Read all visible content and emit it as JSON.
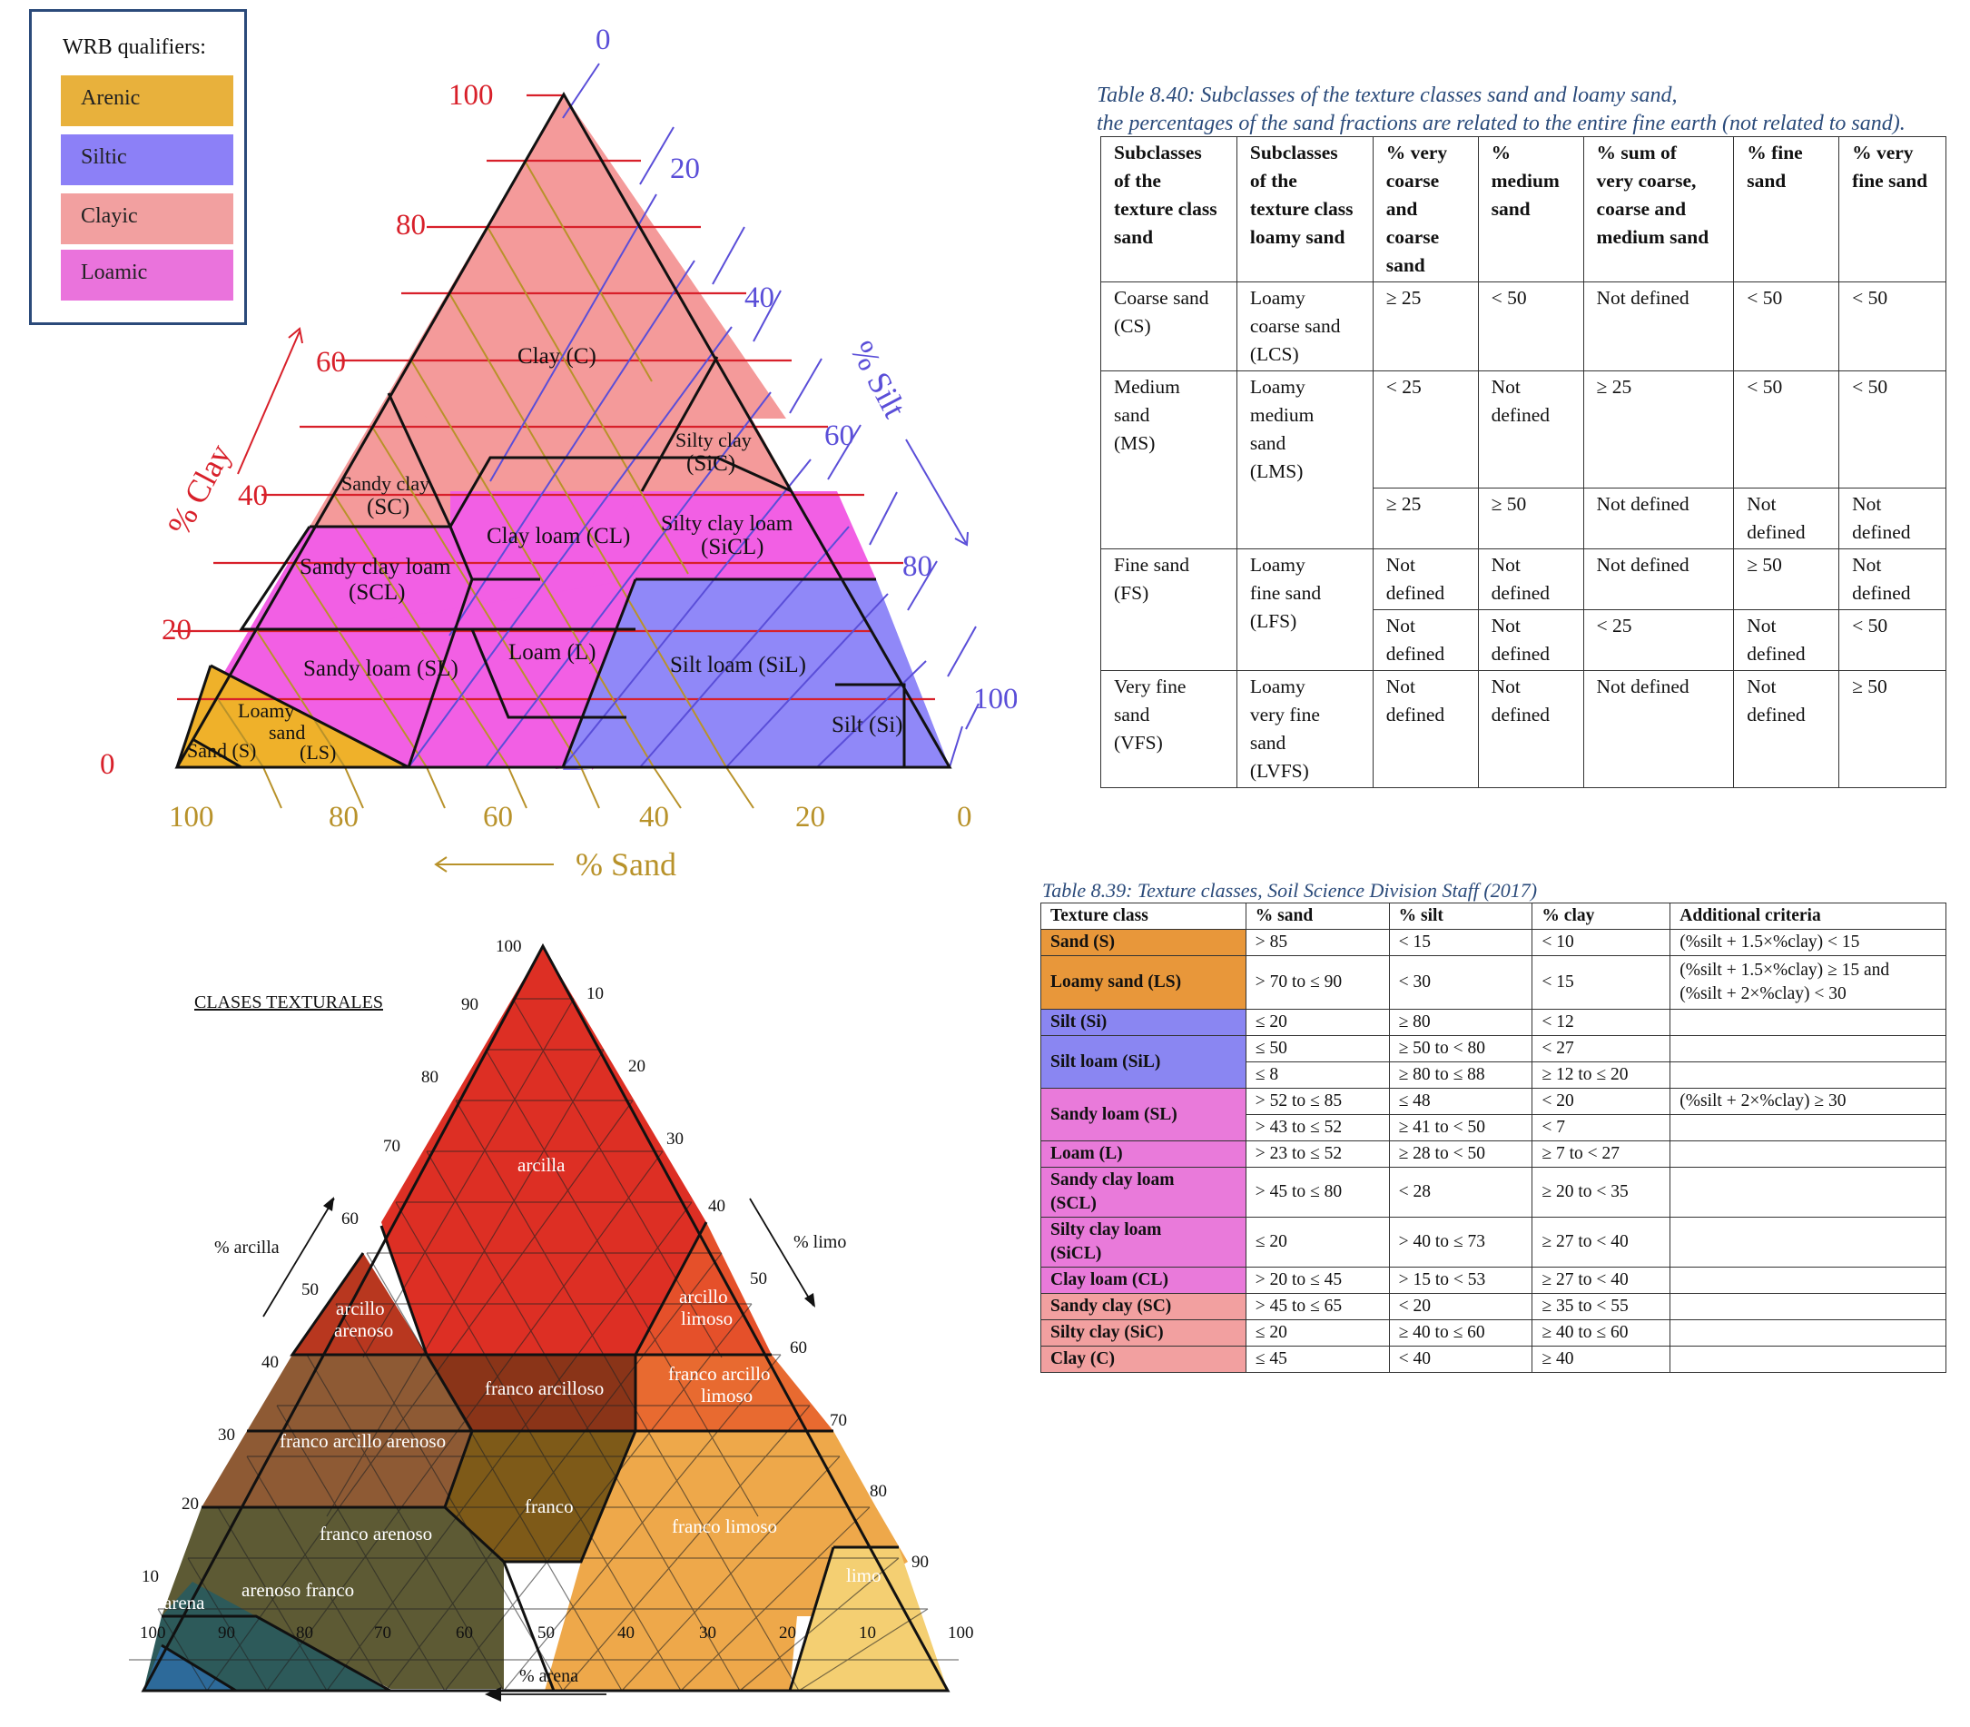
{
  "legend": {
    "title": "WRB qualifiers:",
    "items": [
      {
        "label": "Arenic",
        "color": "#e8b13c"
      },
      {
        "label": "Siltic",
        "color": "#8c80f7"
      },
      {
        "label": "Clayic",
        "color": "#f2a0a0"
      },
      {
        "label": "Loamic",
        "color": "#ea73dc"
      }
    ]
  },
  "triangle_en": {
    "axis_clay": "% Clay",
    "axis_silt": "% Silt",
    "axis_sand": "% Sand",
    "clay_ticks": [
      "100",
      "80",
      "60",
      "40",
      "20",
      "0"
    ],
    "silt_ticks": [
      "0",
      "20",
      "40",
      "60",
      "80",
      "100"
    ],
    "sand_ticks": [
      "100",
      "80",
      "60",
      "40",
      "20",
      "0"
    ],
    "classes": {
      "clay": "Clay (C)",
      "sandy_clay_1": "Sandy clay",
      "sandy_clay_2": "(SC)",
      "silty_clay_1": "Silty clay",
      "silty_clay_2": "(SiC)",
      "clay_loam": "Clay loam (CL)",
      "silty_clay_loam_1": "Silty clay loam",
      "silty_clay_loam_2": "(SiCL)",
      "sandy_clay_loam_1": "Sandy clay loam",
      "sandy_clay_loam_2": "(SCL)",
      "loam": "Loam (L)",
      "sandy_loam": "Sandy loam (SL)",
      "silt_loam": "Silt loam (SiL)",
      "silt": "Silt (Si)",
      "loamy_sand_1": "Loamy",
      "loamy_sand_2": "sand",
      "loamy_sand_3": "(LS)",
      "sand": "Sand (S)"
    },
    "colors": {
      "clayic": "#f49a9a",
      "loamic": "#f25fe4",
      "siltic": "#9088f8",
      "arenic": "#efb12a",
      "clay_axis": "#d8202a",
      "silt_axis": "#5a4ed8",
      "sand_axis": "#b8922a"
    }
  },
  "triangle_es": {
    "title": "CLASES TEXTURALES",
    "axis_clay": "% arcilla",
    "axis_silt": "% limo",
    "axis_sand": "% arena",
    "clay_ticks": [
      "100",
      "90",
      "80",
      "70",
      "60",
      "50",
      "40",
      "30",
      "20",
      "10"
    ],
    "silt_ticks": [
      "10",
      "20",
      "30",
      "40",
      "50",
      "60",
      "70",
      "80",
      "90",
      "100"
    ],
    "sand_ticks": [
      "100",
      "90",
      "80",
      "70",
      "60",
      "50",
      "40",
      "30",
      "20",
      "10"
    ],
    "classes": {
      "arcilla": "arcilla",
      "arcillo_arenoso_1": "arcillo",
      "arcillo_arenoso_2": "arenoso",
      "arcillo_limoso_1": "arcillo",
      "arcillo_limoso_2": "limoso",
      "franco_arcilloso": "franco arcilloso",
      "franco_arcillo_limoso_1": "franco arcillo",
      "franco_arcillo_limoso_2": "limoso",
      "franco_arcillo_arenoso": "franco arcillo arenoso",
      "franco": "franco",
      "franco_arenoso": "franco arenoso",
      "franco_limoso": "franco limoso",
      "arenoso_franco": "arenoso franco",
      "arena": "arena",
      "limo": "limo"
    },
    "colors": {
      "arcilla": "#dd2f24",
      "arcillo_arenoso": "#b8371f",
      "arcillo_limoso": "#e5502a",
      "franco_arcilloso": "#8a3418",
      "franco_arcillo_limoso": "#e86a30",
      "franco_arcillo_arenoso": "#8e5a34",
      "franco": "#7e5a18",
      "franco_arenoso": "#5d5a34",
      "franco_limoso": "#eea84a",
      "arenoso_franco": "#2d5a5a",
      "arena": "#2d6a9a",
      "limo": "#f4cf72"
    }
  },
  "table_840": {
    "caption_1": "Table 8.40: Subclasses of the texture classes sand and loamy sand,",
    "caption_2": "the percentages of the sand fractions are related to the entire fine earth (not related to sand).",
    "headers": [
      [
        "Subclasses",
        "of the",
        "texture class",
        "sand"
      ],
      [
        "Subclasses",
        "of the",
        "texture class",
        "loamy sand"
      ],
      [
        "% very",
        "coarse",
        "and",
        "coarse",
        "sand"
      ],
      [
        "%",
        "medium",
        "sand"
      ],
      [
        "% sum of",
        "very coarse,",
        "coarse and",
        "medium sand"
      ],
      [
        "% fine",
        "sand"
      ],
      [
        "% very",
        "fine sand"
      ]
    ],
    "rows": {
      "cs_sand": [
        "Coarse sand",
        "(CS)"
      ],
      "cs_loamy": [
        "Loamy",
        "coarse sand",
        "(LCS)"
      ],
      "cs_vals": [
        "≥ 25",
        "< 50",
        "Not defined",
        "< 50",
        "< 50"
      ],
      "ms_sand": [
        "Medium",
        "sand",
        "(MS)"
      ],
      "ms_loamy": [
        "Loamy",
        "medium",
        "sand",
        "(LMS)"
      ],
      "ms_vals_a": [
        "< 25",
        [
          "Not",
          "defined"
        ],
        "≥ 25",
        "< 50",
        "< 50"
      ],
      "ms_vals_b": [
        "≥ 25",
        "≥ 50",
        "Not defined",
        [
          "Not",
          "defined"
        ],
        [
          "Not",
          "defined"
        ]
      ],
      "fs_sand": [
        "Fine sand",
        "(FS)"
      ],
      "fs_loamy": [
        "Loamy",
        "fine sand",
        "(LFS)"
      ],
      "fs_vals_a": [
        [
          "Not",
          "defined"
        ],
        [
          "Not",
          "defined"
        ],
        "Not defined",
        "≥ 50",
        [
          "Not",
          "defined"
        ]
      ],
      "fs_vals_b": [
        [
          "Not",
          "defined"
        ],
        [
          "Not",
          "defined"
        ],
        "< 25",
        [
          "Not",
          "defined"
        ],
        "< 50"
      ],
      "vfs_sand": [
        "Very fine",
        "sand",
        "(VFS)"
      ],
      "vfs_loamy": [
        "Loamy",
        "very fine",
        "sand",
        "(LVFS)"
      ],
      "vfs_vals": [
        [
          "Not",
          "defined"
        ],
        [
          "Not",
          "defined"
        ],
        "Not defined",
        [
          "Not",
          "defined"
        ],
        "≥ 50"
      ]
    }
  },
  "table_839": {
    "caption": "Table 8.39: Texture classes, Soil Science Division Staff (2017)",
    "headers": [
      "Texture class",
      "% sand",
      "% silt",
      "% clay",
      "Additional criteria"
    ],
    "rows": [
      {
        "cls": [
          "Sand (S)"
        ],
        "color": "#e8973a",
        "sand": "> 85",
        "silt": "< 15",
        "clay": "< 10",
        "crit": [
          "(%silt + 1.5×%clay) < 15"
        ]
      },
      {
        "cls": [
          "Loamy sand (LS)"
        ],
        "color": "#e8973a",
        "sand": "> 70 to ≤ 90",
        "silt": "< 30",
        "clay": "< 15",
        "crit": [
          "(%silt + 1.5×%clay) ≥ 15 and",
          "(%silt + 2×%clay) < 30"
        ]
      },
      {
        "cls": [
          "Silt (Si)"
        ],
        "color": "#8a86f2",
        "sand": "≤ 20",
        "silt": "≥ 80",
        "clay": "< 12",
        "crit": [
          ""
        ]
      },
      {
        "cls": [
          "Silt loam (SiL)"
        ],
        "color": "#8a86f2",
        "sub": [
          {
            "sand": "≤ 50",
            "silt": "≥ 50 to < 80",
            "clay": "< 27"
          },
          {
            "sand": "≤ 8",
            "silt": "≥ 80 to ≤ 88",
            "clay": "≥ 12 to ≤ 20"
          }
        ]
      },
      {
        "cls": [
          "Sandy loam (SL)"
        ],
        "color": "#e97ada",
        "sub": [
          {
            "sand": "> 52 to ≤ 85",
            "silt": "≤ 48",
            "clay": "< 20",
            "crit": "(%silt + 2×%clay) ≥ 30"
          },
          {
            "sand": "> 43 to ≤ 52",
            "silt": "≥ 41 to < 50",
            "clay": "< 7",
            "crit": ""
          }
        ]
      },
      {
        "cls": [
          "Loam (L)"
        ],
        "color": "#e97ada",
        "sand": "> 23 to ≤ 52",
        "silt": "≥ 28 to < 50",
        "clay": "≥ 7 to < 27",
        "crit": [
          ""
        ]
      },
      {
        "cls": [
          "Sandy clay loam",
          "(SCL)"
        ],
        "color": "#e97ada",
        "sand": "> 45 to ≤ 80",
        "silt": "< 28",
        "clay": "≥ 20 to < 35",
        "crit": [
          ""
        ]
      },
      {
        "cls": [
          "Silty clay loam",
          "(SiCL)"
        ],
        "color": "#e97ada",
        "sand": "≤ 20",
        "silt": "> 40 to ≤ 73",
        "clay": "≥ 27 to < 40",
        "crit": [
          ""
        ]
      },
      {
        "cls": [
          "Clay loam (CL)"
        ],
        "color": "#e97ada",
        "sand": "> 20 to ≤ 45",
        "silt": "> 15 to < 53",
        "clay": "≥ 27 to < 40",
        "crit": [
          ""
        ]
      },
      {
        "cls": [
          "Sandy clay (SC)"
        ],
        "color": "#f2a0a0",
        "sand": "> 45 to ≤ 65",
        "silt": "< 20",
        "clay": "≥ 35 to < 55",
        "crit": [
          ""
        ]
      },
      {
        "cls": [
          "Silty clay (SiC)"
        ],
        "color": "#f2a0a0",
        "sand": "≤ 20",
        "silt": "≥ 40 to ≤ 60",
        "clay": "≥ 40 to ≤ 60",
        "crit": [
          ""
        ]
      },
      {
        "cls": [
          "Clay (C)"
        ],
        "color": "#f2a0a0",
        "sand": "≤ 45",
        "silt": "< 40",
        "clay": "≥ 40",
        "crit": [
          ""
        ]
      }
    ]
  }
}
